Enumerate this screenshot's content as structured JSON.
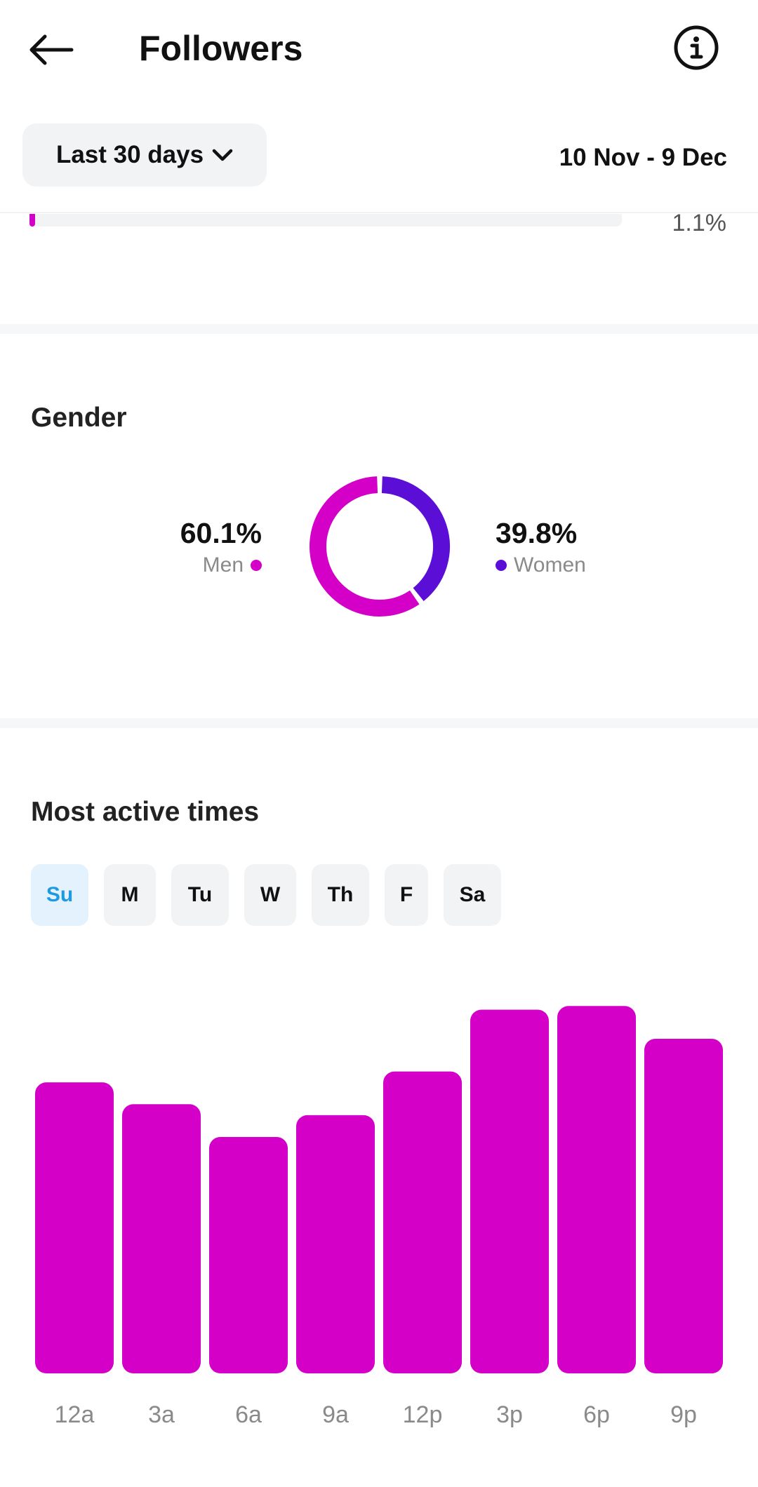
{
  "header": {
    "title": "Followers"
  },
  "filter": {
    "range_label": "Last 30 days",
    "date_range": "10 Nov - 9 Dec"
  },
  "top_bar": {
    "value_label": "1.1%",
    "fill_fraction": 0.011
  },
  "gender": {
    "title": "Gender",
    "men": {
      "pct": "60.1%",
      "label": "Men",
      "value": 60.1
    },
    "women": {
      "pct": "39.8%",
      "label": "Women",
      "value": 39.8
    },
    "colors": {
      "men": "#d400c8",
      "women": "#5b0fd6"
    }
  },
  "active_times": {
    "title": "Most active times",
    "days": [
      "Su",
      "M",
      "Tu",
      "W",
      "Th",
      "F",
      "Sa"
    ],
    "selected_day": "Su"
  },
  "chart_data": {
    "type": "bar",
    "categories": [
      "12a",
      "3a",
      "6a",
      "9a",
      "12p",
      "3p",
      "6p",
      "9p"
    ],
    "values": [
      80,
      74,
      65,
      71,
      83,
      100,
      101,
      92
    ],
    "ylim": [
      0,
      108
    ],
    "grid": false,
    "bar_color": "#d400c8"
  },
  "icons": {
    "back": "back-arrow-icon",
    "info": "info-icon",
    "dropdown": "chevron-down-icon"
  }
}
